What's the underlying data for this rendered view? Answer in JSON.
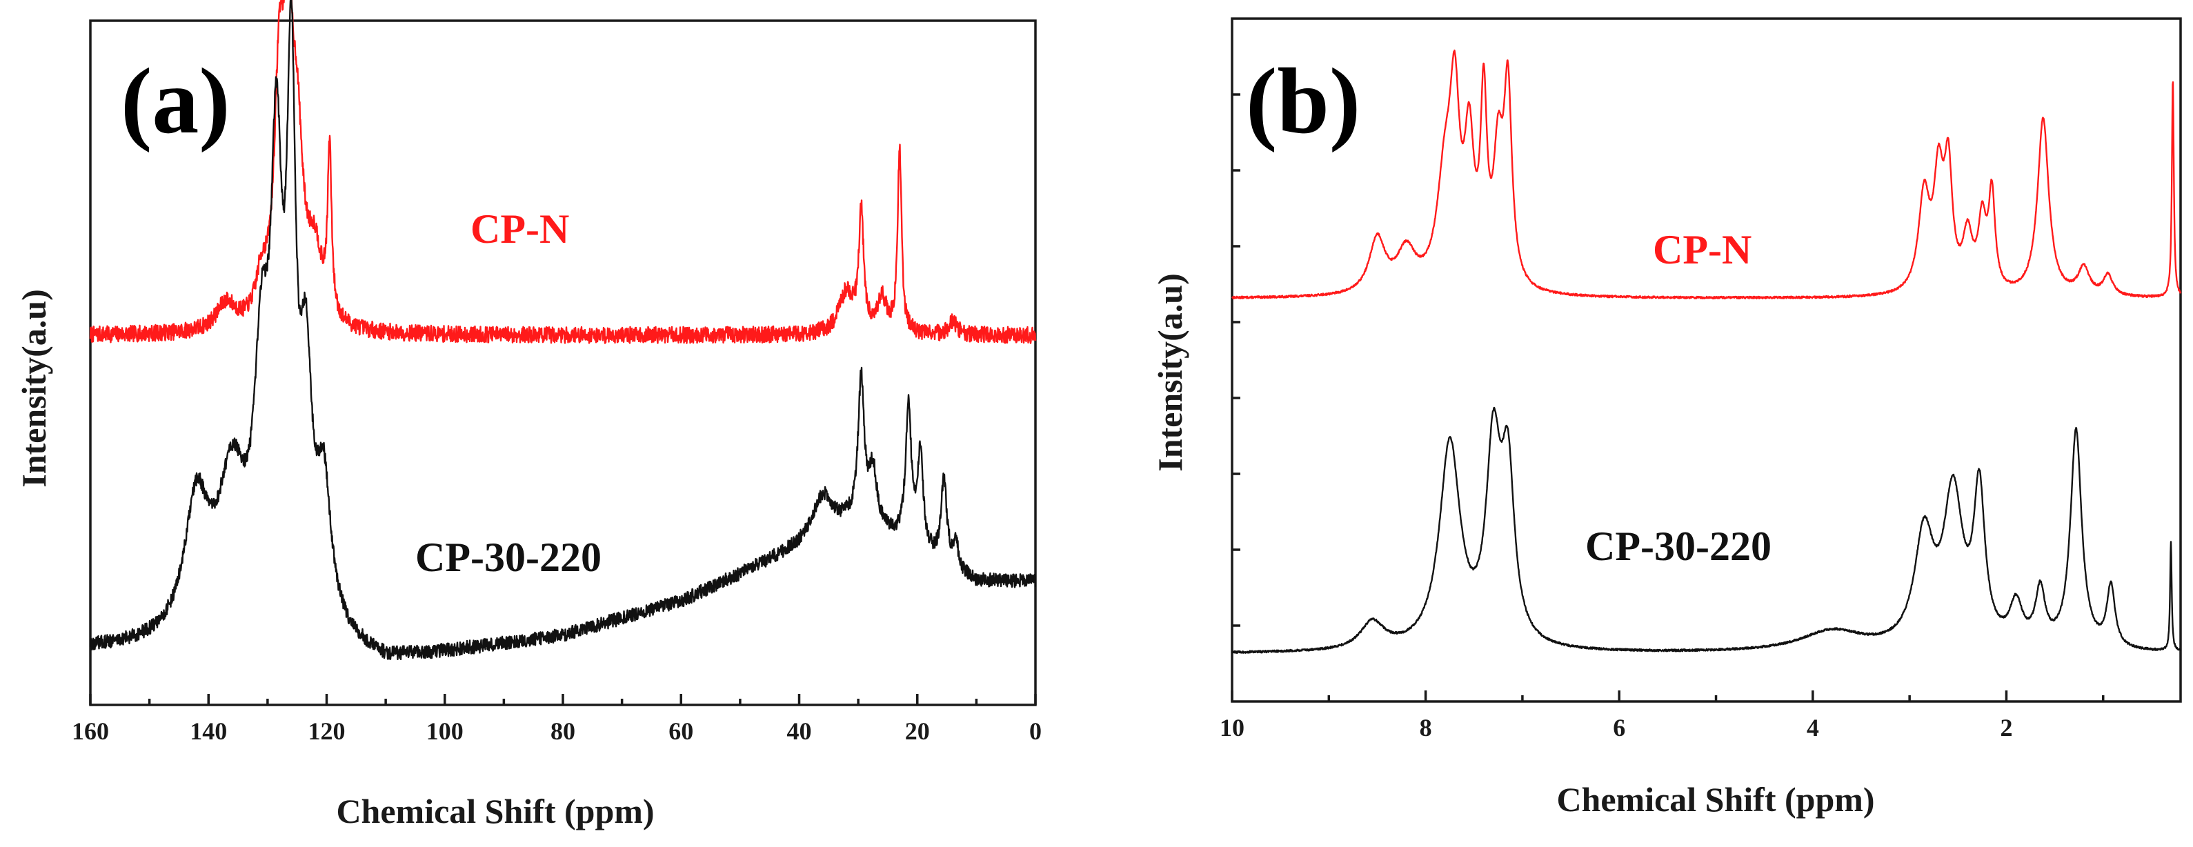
{
  "colors": {
    "red_series": "#ff1a1a",
    "black_series": "#111111",
    "axis": "#1a1a1a"
  },
  "chart_data": [
    {
      "panel": "(a)",
      "type": "line",
      "xlabel": "Chemical Shift (ppm)",
      "ylabel": "Intensity(a.u)",
      "xlim": [
        160,
        0
      ],
      "x_reversed": true,
      "xticks": [
        160,
        140,
        120,
        100,
        80,
        60,
        40,
        20,
        0
      ],
      "xtick_labels": [
        "160",
        "140",
        "120",
        "100",
        "80",
        "60",
        "40",
        "20",
        "0"
      ],
      "minor_xticks": true,
      "yticks": false,
      "series": [
        {
          "name": "CP-N",
          "color": "#ff1a1a",
          "baseline": 0.54,
          "noise": 0.012,
          "drift": [
            [
              160,
              0.0
            ],
            [
              0,
              0.0
            ]
          ],
          "peaks": [
            {
              "x": 137,
              "h": 0.04,
              "w": 2.0
            },
            {
              "x": 131,
              "h": 0.06,
              "w": 1.2
            },
            {
              "x": 128,
              "h": 0.33,
              "w": 1.0
            },
            {
              "x": 126.5,
              "h": 0.36,
              "w": 0.9
            },
            {
              "x": 125,
              "h": 0.24,
              "w": 1.2
            },
            {
              "x": 122,
              "h": 0.1,
              "w": 1.5
            },
            {
              "x": 119.5,
              "h": 0.24,
              "w": 0.4
            },
            {
              "x": 32,
              "h": 0.06,
              "w": 1.5
            },
            {
              "x": 29.5,
              "h": 0.17,
              "w": 0.5
            },
            {
              "x": 26,
              "h": 0.05,
              "w": 1.0
            },
            {
              "x": 23,
              "h": 0.27,
              "w": 0.4
            },
            {
              "x": 14,
              "h": 0.02,
              "w": 0.8
            }
          ]
        },
        {
          "name": "CP-30-220",
          "color": "#111111",
          "baseline": 0.08,
          "noise": 0.01,
          "drift": [
            [
              160,
              0.0
            ],
            [
              118,
              0.0
            ],
            [
              110,
              -0.02
            ],
            [
              80,
              0.02
            ],
            [
              60,
              0.07
            ],
            [
              40,
              0.15
            ],
            [
              30,
              0.19
            ],
            [
              20,
              0.14
            ],
            [
              10,
              0.1
            ],
            [
              0,
              0.1
            ]
          ],
          "peaks": [
            {
              "x": 142,
              "h": 0.19,
              "w": 2.5
            },
            {
              "x": 136,
              "h": 0.22,
              "w": 3.0
            },
            {
              "x": 131,
              "h": 0.33,
              "w": 1.5
            },
            {
              "x": 128.5,
              "h": 0.6,
              "w": 1.2
            },
            {
              "x": 126,
              "h": 0.72,
              "w": 0.9
            },
            {
              "x": 123.5,
              "h": 0.33,
              "w": 1.2
            },
            {
              "x": 120.5,
              "h": 0.2,
              "w": 1.5
            },
            {
              "x": 36,
              "h": 0.06,
              "w": 2.0
            },
            {
              "x": 29.5,
              "h": 0.2,
              "w": 0.6
            },
            {
              "x": 27.5,
              "h": 0.08,
              "w": 0.8
            },
            {
              "x": 21.5,
              "h": 0.2,
              "w": 0.6
            },
            {
              "x": 19.5,
              "h": 0.14,
              "w": 0.6
            },
            {
              "x": 15.5,
              "h": 0.12,
              "w": 0.6
            },
            {
              "x": 13.5,
              "h": 0.04,
              "w": 0.5
            }
          ]
        }
      ]
    },
    {
      "panel": "(b)",
      "type": "line",
      "xlabel": "Chemical Shift (ppm)",
      "ylabel": "Intensity(a.u)",
      "xlim": [
        10,
        0.2
      ],
      "x_reversed": true,
      "xticks": [
        10,
        8,
        6,
        4,
        2
      ],
      "xtick_labels": [
        "10",
        "8",
        "6",
        "4",
        "2"
      ],
      "minor_xticks": true,
      "yticks": true,
      "series": [
        {
          "name": "CP-N",
          "color": "#ff1a1a",
          "baseline": 0.59,
          "noise": 0.0015,
          "drift": [
            [
              10,
              0.0
            ],
            [
              0,
              0.0
            ]
          ],
          "peaks": [
            {
              "x": 8.5,
              "h": 0.08,
              "w": 0.1
            },
            {
              "x": 8.2,
              "h": 0.06,
              "w": 0.12
            },
            {
              "x": 7.8,
              "h": 0.16,
              "w": 0.1
            },
            {
              "x": 7.7,
              "h": 0.24,
              "w": 0.06
            },
            {
              "x": 7.55,
              "h": 0.2,
              "w": 0.06
            },
            {
              "x": 7.4,
              "h": 0.26,
              "w": 0.04
            },
            {
              "x": 7.25,
              "h": 0.18,
              "w": 0.06
            },
            {
              "x": 7.15,
              "h": 0.28,
              "w": 0.05
            },
            {
              "x": 2.85,
              "h": 0.14,
              "w": 0.07
            },
            {
              "x": 2.7,
              "h": 0.16,
              "w": 0.06
            },
            {
              "x": 2.6,
              "h": 0.17,
              "w": 0.05
            },
            {
              "x": 2.4,
              "h": 0.08,
              "w": 0.06
            },
            {
              "x": 2.25,
              "h": 0.1,
              "w": 0.05
            },
            {
              "x": 2.15,
              "h": 0.14,
              "w": 0.04
            },
            {
              "x": 1.62,
              "h": 0.26,
              "w": 0.07
            },
            {
              "x": 1.2,
              "h": 0.04,
              "w": 0.07
            },
            {
              "x": 0.95,
              "h": 0.03,
              "w": 0.06
            },
            {
              "x": 0.28,
              "h": 0.32,
              "w": 0.012
            }
          ]
        },
        {
          "name": "CP-30-220",
          "color": "#111111",
          "baseline": 0.07,
          "noise": 0.0015,
          "drift": [
            [
              10,
              0.0
            ],
            [
              0,
              0.0
            ]
          ],
          "peaks": [
            {
              "x": 8.55,
              "h": 0.04,
              "w": 0.15
            },
            {
              "x": 7.75,
              "h": 0.3,
              "w": 0.13
            },
            {
              "x": 7.3,
              "h": 0.28,
              "w": 0.09
            },
            {
              "x": 7.15,
              "h": 0.24,
              "w": 0.08
            },
            {
              "x": 3.8,
              "h": 0.03,
              "w": 0.4
            },
            {
              "x": 2.85,
              "h": 0.16,
              "w": 0.12
            },
            {
              "x": 2.55,
              "h": 0.22,
              "w": 0.12
            },
            {
              "x": 2.28,
              "h": 0.22,
              "w": 0.07
            },
            {
              "x": 1.9,
              "h": 0.06,
              "w": 0.08
            },
            {
              "x": 1.65,
              "h": 0.08,
              "w": 0.06
            },
            {
              "x": 1.28,
              "h": 0.32,
              "w": 0.07
            },
            {
              "x": 0.92,
              "h": 0.09,
              "w": 0.05
            },
            {
              "x": 0.3,
              "h": 0.16,
              "w": 0.01
            }
          ]
        }
      ]
    }
  ]
}
